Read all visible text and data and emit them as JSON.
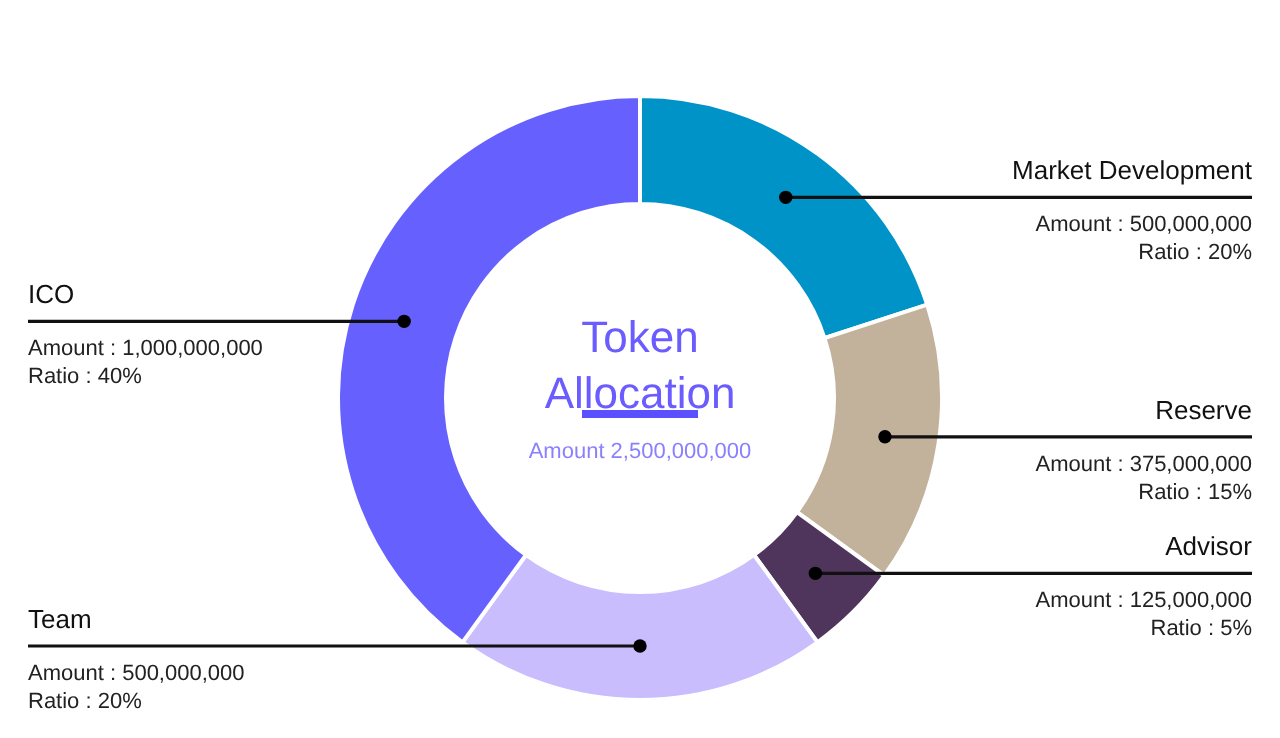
{
  "chart_data": {
    "type": "donut",
    "title": "Token Allocation",
    "subtitle": "Amount 2,500,000,000",
    "categories": [
      "Market Development",
      "Reserve",
      "Advisor",
      "Team",
      "ICO"
    ],
    "values": [
      500000000,
      375000000,
      125000000,
      500000000,
      1000000000
    ],
    "colors": [
      "#0093c8",
      "#c2b29b",
      "#4f355c",
      "#c9bdfd",
      "#6661fe"
    ],
    "value_labels": [
      "Amount : 500,000,000\nRatio : 20%",
      "Amount : 375,000,000\nRatio : 15%",
      "Amount : 125,000,000\nRatio : 5%",
      "Amount : 500,000,000\nRatio : 20%",
      "Amount : 1,000,000,000\nRatio : 40%"
    ]
  }
}
